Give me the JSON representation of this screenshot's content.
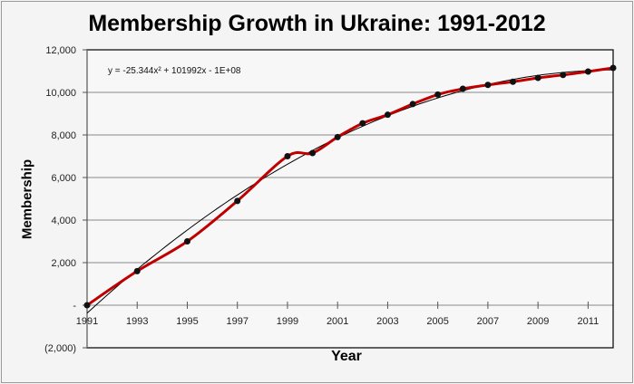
{
  "chart_data": {
    "type": "line",
    "title": "Membership Growth in Ukraine: 1991-2012",
    "xlabel": "Year",
    "ylabel": "Membership",
    "ylim": [
      -2000,
      12000
    ],
    "xlim": [
      1991,
      2012
    ],
    "grid": true,
    "y_ticks": [
      "(2,000)",
      "-",
      "2,000",
      "4,000",
      "6,000",
      "8,000",
      "10,000",
      "12,000"
    ],
    "x_ticks": [
      "1991",
      "1993",
      "1995",
      "1997",
      "1999",
      "2001",
      "2003",
      "2005",
      "2007",
      "2009",
      "2011"
    ],
    "series": [
      {
        "name": "Membership",
        "color": "#c00000",
        "x": [
          1991,
          1993,
          1995,
          1997,
          1999,
          2000,
          2001,
          2002,
          2003,
          2004,
          2005,
          2006,
          2007,
          2008,
          2009,
          2010,
          2011,
          2012
        ],
        "values": [
          0,
          1600,
          3000,
          4900,
          7000,
          7150,
          7900,
          8550,
          8950,
          9450,
          9900,
          10170,
          10350,
          10500,
          10680,
          10820,
          10980,
          11150
        ]
      }
    ],
    "trendline": {
      "type": "polynomial",
      "order": 2,
      "equation": "y = -25.344x² + 101992x - 1E+08",
      "color": "#000000"
    },
    "annotations": [
      "y = -25.344x² + 101992x - 1E+08"
    ]
  }
}
